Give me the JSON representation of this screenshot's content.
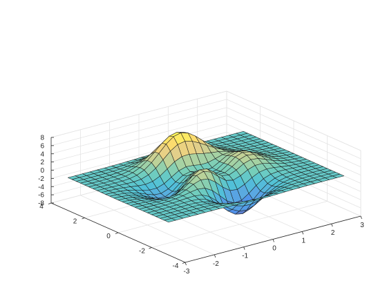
{
  "chart_data": {
    "type": "surface",
    "title": "",
    "xlabel": "",
    "ylabel": "",
    "zlabel": "",
    "function": "peaks",
    "grid": true,
    "colormap": "parula",
    "face_alpha": 0.7,
    "xlim": [
      -3,
      3
    ],
    "ylim": [
      -4,
      4
    ],
    "zlim": [
      -8,
      8
    ],
    "x_ticks": [
      -3,
      -2,
      -1,
      0,
      1,
      2,
      3
    ],
    "y_ticks": [
      -4,
      -2,
      0,
      2,
      4
    ],
    "z_ticks": [
      -8,
      -6,
      -4,
      -2,
      0,
      2,
      4,
      6,
      8
    ],
    "x_tick_labels": [
      "-3",
      "-2",
      "-1",
      "0",
      "1",
      "2",
      "3"
    ],
    "y_tick_labels": [
      "-4",
      "-2",
      "0",
      "2",
      "4"
    ],
    "z_tick_labels": [
      "-8",
      "-6",
      "-4",
      "-2",
      "0",
      "2",
      "4",
      "6",
      "8"
    ],
    "samples": 25,
    "x_range": [
      -3,
      3
    ],
    "y_range": [
      -3,
      3
    ],
    "z_min": -6.55,
    "z_max": 8.1
  }
}
